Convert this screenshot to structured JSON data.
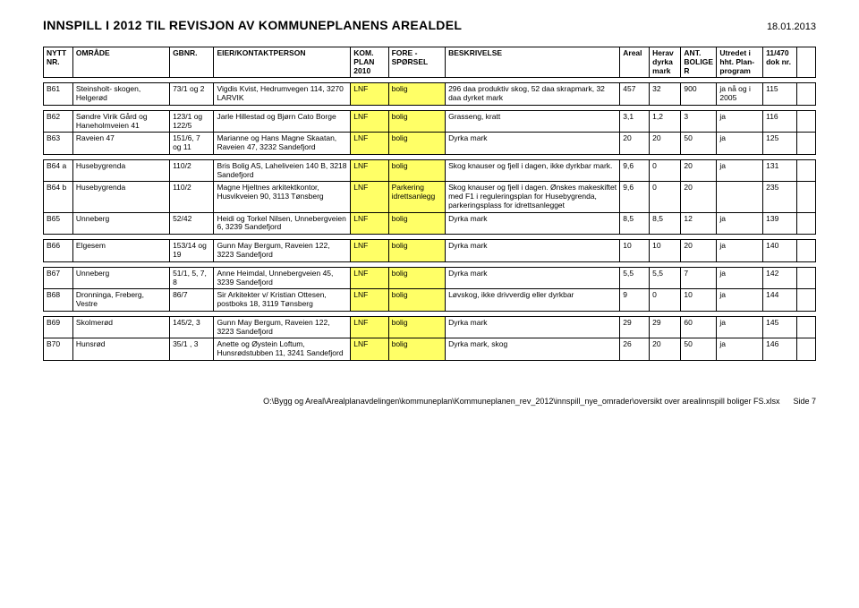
{
  "header": {
    "title": "INNSPILL I 2012 TIL REVISJON AV KOMMUNEPLANENS AREALDEL",
    "date": "18.01.2013"
  },
  "columns": {
    "c1": "NYTT NR.",
    "c2": "OMRÅDE",
    "c3": "GBNR.",
    "c4": "EIER/KONTAKTPERSON",
    "c5": "KOM. PLAN 2010",
    "c6": "FORE - SPØRSEL",
    "c7": "BESKRIVELSE",
    "c8": "Areal",
    "c9": "Herav dyrka mark",
    "c10": "ANT. BOLIGE R",
    "c11": "Utredet i hht. Plan-program",
    "c12": "11/470 dok nr.",
    "c13": ""
  },
  "rows": [
    {
      "nr": "B61",
      "omrade": "Steinsholt- skogen, Helgerød",
      "gbnr": "73/1 og 2",
      "eier": "Vigdis Kvist, Hedrumvegen 114, 3270 LARVIK",
      "plan": "LNF",
      "fore": "bolig",
      "besk": "296 daa produktiv skog, 52 daa skrapmark, 32 daa dyrket mark",
      "areal": "457",
      "dyrka": "32",
      "bolig": "900",
      "utredet": "ja nå og i 2005",
      "dok": "115",
      "sep": true
    },
    {
      "nr": "B62",
      "omrade": "Søndre Virik Gård og Haneholmveien 41",
      "gbnr": "123/1 og 122/5",
      "eier": "Jarle Hillestad og Bjørn Cato Borge",
      "plan": "LNF",
      "fore": "bolig",
      "besk": "Grasseng, kratt",
      "areal": "3,1",
      "dyrka": "1,2",
      "bolig": "3",
      "utredet": "ja",
      "dok": "116",
      "sep": true
    },
    {
      "nr": "B63",
      "omrade": "Raveien 47",
      "gbnr": "151/6, 7 og 11",
      "eier": "Marianne og Hans Magne Skaatan, Raveien 47, 3232 Sandefjord",
      "plan": "LNF",
      "fore": "bolig",
      "besk": "Dyrka mark",
      "areal": "20",
      "dyrka": "20",
      "bolig": "50",
      "utredet": "ja",
      "dok": "125"
    },
    {
      "nr": "B64 a",
      "omrade": "Husebygrenda",
      "gbnr": "110/2",
      "eier": "Bris Bolig AS, Laheliveien 140 B, 3218 Sandefjord",
      "plan": "LNF",
      "fore": "bolig",
      "besk": "Skog knauser og fjell i dagen, ikke dyrkbar mark.",
      "areal": "9,6",
      "dyrka": "0",
      "bolig": "20",
      "utredet": "ja",
      "dok": "131",
      "sep": true
    },
    {
      "nr": "B64 b",
      "omrade": "Husebygrenda",
      "gbnr": "110/2",
      "eier": "Magne Hjeltnes arkitektkontor, Husvikveien 90, 3113 Tønsberg",
      "plan": "LNF",
      "fore": "Parkering idrettsanlegg",
      "besk": "Skog knauser og fjell i dagen. Ønskes makeskiftet med F1 i reguleringsplan for Husebygrenda, parkeringsplass for idrettsanlegget",
      "areal": "9,6",
      "dyrka": "0",
      "bolig": "20",
      "utredet": "",
      "dok": "235"
    },
    {
      "nr": "B65",
      "omrade": "Unneberg",
      "gbnr": "52/42",
      "eier": "Heidi og Torkel Nilsen, Unnebergveien 6, 3239 Sandefjord",
      "plan": "LNF",
      "fore": "bolig",
      "besk": "Dyrka mark",
      "areal": "8,5",
      "dyrka": "8,5",
      "bolig": "12",
      "utredet": "ja",
      "dok": "139"
    },
    {
      "nr": "B66",
      "omrade": "Elgesem",
      "gbnr": "153/14 og 19",
      "eier": "Gunn May Bergum, Raveien 122, 3223 Sandefjord",
      "plan": "LNF",
      "fore": "bolig",
      "besk": "Dyrka mark",
      "areal": "10",
      "dyrka": "10",
      "bolig": "20",
      "utredet": "ja",
      "dok": "140",
      "sep": true
    },
    {
      "nr": "B67",
      "omrade": "Unneberg",
      "gbnr": "51/1, 5, 7, 8",
      "eier": "Anne Heimdal, Unnebergveien 45, 3239 Sandefjord",
      "plan": "LNF",
      "fore": "bolig",
      "besk": "Dyrka mark",
      "areal": "5,5",
      "dyrka": "5,5",
      "bolig": "7",
      "utredet": "ja",
      "dok": "142",
      "sep": true
    },
    {
      "nr": "B68",
      "omrade": "Dronninga, Freberg, Vestre",
      "gbnr": "86/7",
      "eier": "Sir Arkitekter v/ Kristian Ottesen, postboks 18, 3119 Tønsberg",
      "plan": "LNF",
      "fore": "bolig",
      "besk": "Løvskog, ikke drivverdig eller dyrkbar",
      "areal": "9",
      "dyrka": "0",
      "bolig": "10",
      "utredet": "ja",
      "dok": "144"
    },
    {
      "nr": "B69",
      "omrade": "Skolmerød",
      "gbnr": "145/2, 3",
      "eier": "Gunn May Bergum, Raveien 122, 3223 Sandefjord",
      "plan": "LNF",
      "fore": "bolig",
      "besk": "Dyrka mark",
      "areal": "29",
      "dyrka": "29",
      "bolig": "60",
      "utredet": "ja",
      "dok": "145",
      "sep": true
    },
    {
      "nr": "B70",
      "omrade": "Hunsrød",
      "gbnr": "35/1 , 3",
      "eier": "Anette og Øystein Loftum, Hunsrødstubben 11, 3241 Sandefjord",
      "plan": "LNF",
      "fore": "bolig",
      "besk": "Dyrka mark, skog",
      "areal": "26",
      "dyrka": "20",
      "bolig": "50",
      "utredet": "ja",
      "dok": "146"
    }
  ],
  "footer": {
    "path": "O:\\Bygg og Areal\\Arealplanavdelingen\\kommuneplan\\Kommuneplanen_rev_2012\\innspill_nye_omrader\\oversikt over arealinnspill boliger FS.xlsx",
    "page": "Side 7"
  }
}
